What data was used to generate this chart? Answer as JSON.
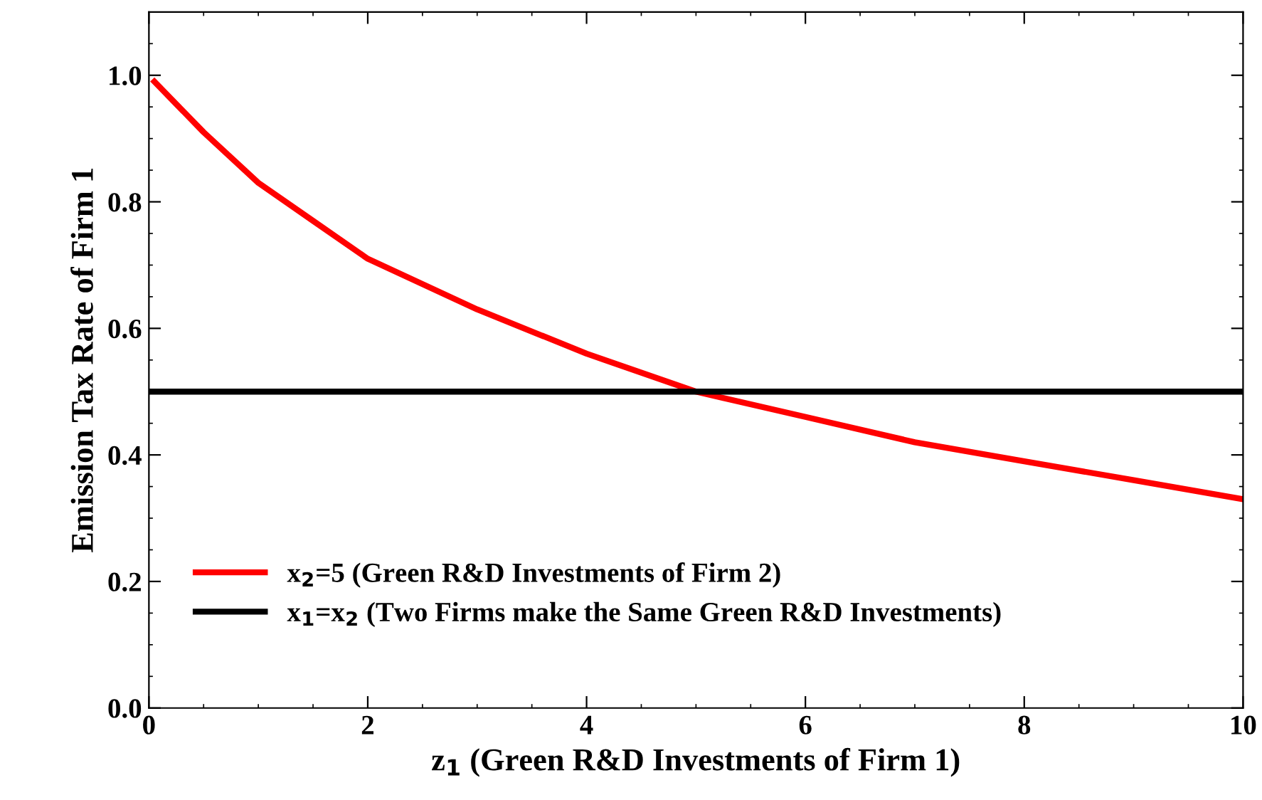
{
  "chart_data": {
    "type": "line",
    "xlabel": "z$_{1}$ (Green R&D Investments of Firm 1)",
    "ylabel": "Emission Tax Rate of Firm 1",
    "xlim": [
      0,
      10
    ],
    "ylim": [
      0,
      1.1
    ],
    "xticks": [
      0,
      2,
      4,
      6,
      8,
      10
    ],
    "yticks": [
      {
        "value": 0,
        "label": "0.0"
      },
      {
        "value": 0.2,
        "label": "0.2"
      },
      {
        "value": 0.4,
        "label": "0.4"
      },
      {
        "value": 0.6,
        "label": "0.6"
      },
      {
        "value": 0.8,
        "label": "0.8"
      },
      {
        "value": 1.0,
        "label": "1.0"
      }
    ],
    "grid": false,
    "legend": "bottom left",
    "marker": "none",
    "line_style": "solid",
    "series": [
      {
        "name": "x$_{2}$=5 (Green R&D Investments of Firm 2)",
        "color": "#ff0000",
        "x": [
          0.05,
          0.5,
          1,
          1.5,
          2,
          3,
          4,
          5,
          6,
          7,
          8,
          9,
          10
        ],
        "values": [
          0.99,
          0.91,
          0.83,
          0.77,
          0.71,
          0.63,
          0.56,
          0.5,
          0.46,
          0.42,
          0.39,
          0.36,
          0.33
        ]
      },
      {
        "name": "x$_{1}$=x$_{2}$ (Two Firms make the Same Green R&D Investments)",
        "color": "#000000",
        "x": [
          0,
          10
        ],
        "values": [
          0.5,
          0.5
        ]
      }
    ]
  }
}
